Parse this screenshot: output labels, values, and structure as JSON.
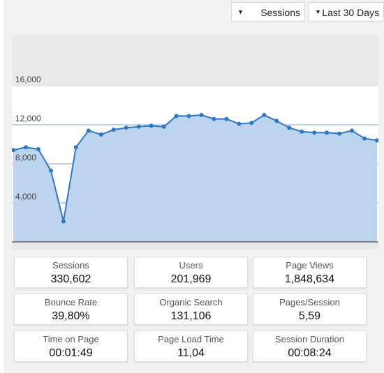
{
  "toolbar": {
    "metric_select": {
      "value": "Sessions",
      "caret": "▼"
    },
    "range_select": {
      "value": "Last 30 Days",
      "caret": "▼"
    }
  },
  "chart_data": {
    "type": "area",
    "title": "",
    "xlabel": "",
    "ylabel": "",
    "ylim": [
      0,
      18000
    ],
    "yticks": [
      "4,000",
      "8,000",
      "12,000",
      "16,000"
    ],
    "ytick_values": [
      4000,
      8000,
      12000,
      16000
    ],
    "grid": true,
    "colors": {
      "line": "#2d78c5",
      "fill": "#bcd4ee",
      "grid": "#7fa6d4",
      "axis": "#222222"
    },
    "series": [
      {
        "values": [
          9400,
          9700,
          9500,
          7300,
          2100,
          9700,
          11400,
          11000,
          11500,
          11700,
          11800,
          11900,
          11800,
          12900,
          12900,
          13000,
          12600,
          12600,
          12100,
          12200,
          13000,
          12400,
          11700,
          11300,
          11200,
          11200,
          11100,
          11400,
          10600,
          10400
        ]
      }
    ]
  },
  "stats": [
    {
      "label": "Sessions",
      "value": "330,602"
    },
    {
      "label": "Users",
      "value": "201,969"
    },
    {
      "label": "Page Views",
      "value": "1,848,634"
    },
    {
      "label": "Bounce Rate",
      "value": "39,80%"
    },
    {
      "label": "Organic Search",
      "value": "131,106"
    },
    {
      "label": "Pages/Session",
      "value": "5,59"
    },
    {
      "label": "Time on Page",
      "value": "00:01:49"
    },
    {
      "label": "Page Load Time",
      "value": "11,04"
    },
    {
      "label": "Session Duration",
      "value": "00:08:24"
    }
  ]
}
